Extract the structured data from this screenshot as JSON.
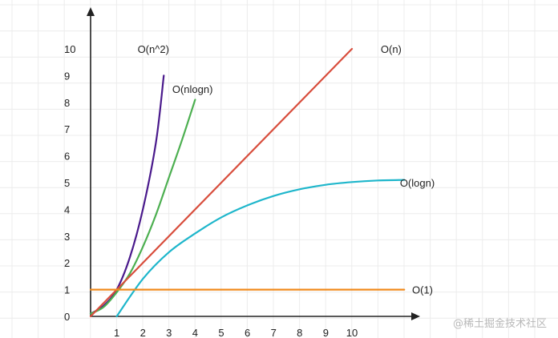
{
  "chart_data": {
    "type": "line",
    "title": "",
    "xlabel": "",
    "ylabel": "",
    "xlim": [
      0,
      12.4
    ],
    "ylim": [
      0,
      11.2
    ],
    "x_ticks": [
      "1",
      "2",
      "3",
      "4",
      "5",
      "6",
      "7",
      "8",
      "9",
      "10"
    ],
    "y_ticks": [
      "0",
      "1",
      "2",
      "3",
      "4",
      "5",
      "6",
      "7",
      "8",
      "9",
      "10"
    ],
    "grid": true,
    "series": [
      {
        "name": "O(n^2)",
        "color": "#4a1a8c",
        "label_at": [
          2.4,
          10
        ],
        "points": [
          [
            0,
            0.1
          ],
          [
            0.5,
            0.4
          ],
          [
            1,
            1.0
          ],
          [
            1.5,
            2.2
          ],
          [
            2,
            4.0
          ],
          [
            2.5,
            6.5
          ],
          [
            2.8,
            9.0
          ]
        ]
      },
      {
        "name": "O(nlogn)",
        "color": "#4caf50",
        "label_at": [
          3.9,
          8.5
        ],
        "points": [
          [
            0,
            0.1
          ],
          [
            0.5,
            0.35
          ],
          [
            1,
            0.9
          ],
          [
            1.5,
            1.6
          ],
          [
            2,
            2.6
          ],
          [
            2.5,
            3.8
          ],
          [
            3,
            5.2
          ],
          [
            3.5,
            6.6
          ],
          [
            4,
            8.1
          ]
        ]
      },
      {
        "name": "O(n)",
        "color": "#d84d3c",
        "label_at": [
          11.5,
          10
        ],
        "points": [
          [
            0,
            0
          ],
          [
            10,
            10
          ]
        ]
      },
      {
        "name": "O(logn)",
        "color": "#1eb6cb",
        "label_at": [
          12.5,
          5
        ],
        "points": [
          [
            1,
            0
          ],
          [
            2,
            1.4
          ],
          [
            3,
            2.4
          ],
          [
            4,
            3.1
          ],
          [
            5,
            3.7
          ],
          [
            6,
            4.15
          ],
          [
            7,
            4.5
          ],
          [
            8,
            4.75
          ],
          [
            9,
            4.92
          ],
          [
            10,
            5.02
          ],
          [
            11,
            5.08
          ],
          [
            12,
            5.1
          ]
        ]
      },
      {
        "name": "O(1)",
        "color": "#f08a1c",
        "label_at": [
          12.7,
          1
        ],
        "points": [
          [
            0,
            1
          ],
          [
            12,
            1
          ]
        ]
      }
    ]
  },
  "watermark": "@稀土掘金技术社区"
}
